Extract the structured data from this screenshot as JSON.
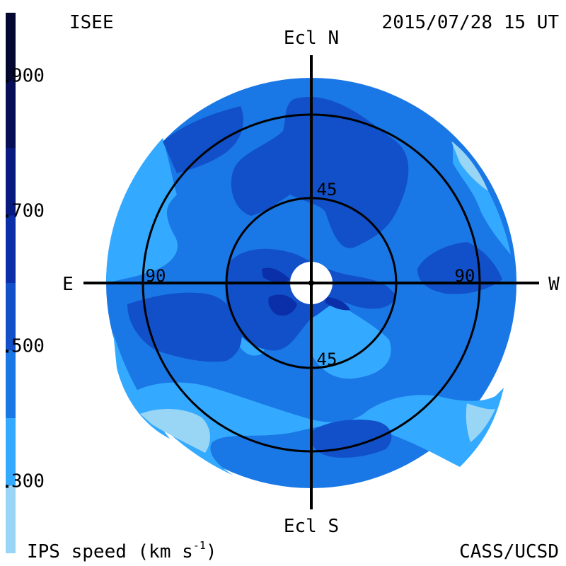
{
  "header": {
    "source": "ISEE",
    "datetime": "2015/07/28 15 UT"
  },
  "footer": {
    "colorbar_label": "IPS speed (km s",
    "colorbar_label_exp": "-1",
    "colorbar_label_end": ")",
    "credit": "CASS/UCSD"
  },
  "chart_data": {
    "type": "heatmap",
    "projection": "polar sky map",
    "quantity": "IPS solar wind speed",
    "unit": "km s-1",
    "colorbar": {
      "ticks": [
        "900",
        "700",
        "500",
        "300"
      ],
      "levels": [
        {
          "min": 200,
          "max": 300,
          "color": "#99d6f5"
        },
        {
          "min": 300,
          "max": 400,
          "color": "#33aaff"
        },
        {
          "min": 400,
          "max": 500,
          "color": "#1a77e6"
        },
        {
          "min": 500,
          "max": 600,
          "color": "#1150c8"
        },
        {
          "min": 600,
          "max": 700,
          "color": "#0a2fa8"
        },
        {
          "min": 700,
          "max": 800,
          "color": "#081a80"
        },
        {
          "min": 800,
          "max": 900,
          "color": "#060f55"
        },
        {
          "min": 900,
          "max": 1000,
          "color": "#040830"
        }
      ]
    },
    "directions": {
      "north": "Ecl N",
      "south": "Ecl S",
      "east": "E",
      "west": "W"
    },
    "ring_labels": {
      "inner_top": "45",
      "inner_bottom": "45",
      "outer_left": "90",
      "outer_right": "90"
    },
    "grid": true
  }
}
